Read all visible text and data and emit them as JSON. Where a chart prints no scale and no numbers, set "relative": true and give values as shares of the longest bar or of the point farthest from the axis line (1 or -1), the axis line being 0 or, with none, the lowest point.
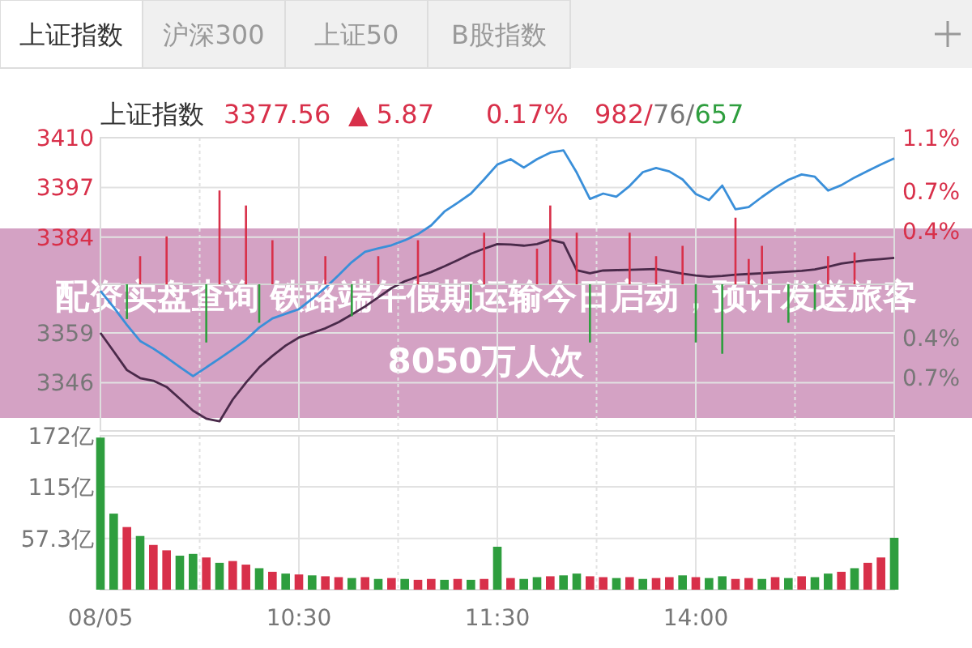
{
  "chart_data": [
    {
      "type": "line",
      "title": "上证指数",
      "annotations": [
        "上证指数",
        "沪深300",
        "上证50",
        "B股指数",
        "3377.56",
        "▲ 5.87",
        "0.17%",
        "982/76/657",
        "配资实盘查询 铁路端午假期运输今日启动，预计发送旅客8050万人次"
      ],
      "categories": [
        null,
        null,
        null,
        null,
        null,
        null,
        null,
        null,
        null,
        null,
        null,
        null,
        null,
        null,
        null,
        null,
        null,
        null,
        null,
        null,
        null,
        null,
        null,
        null,
        null,
        null,
        null,
        null,
        null,
        null,
        null,
        null,
        null,
        null,
        null,
        null,
        null,
        null,
        null,
        null,
        null,
        null,
        null,
        null,
        null,
        null,
        null,
        null,
        null,
        null,
        null,
        null,
        null,
        null,
        null,
        null,
        null,
        null,
        null,
        null,
        null
      ],
      "ylim": [
        3333.4,
        3410
      ],
      "yticks": [
        3410,
        3397,
        3384,
        3359,
        3346
      ],
      "y2lim": [
        -1.1,
        1.1
      ],
      "y2ticks": [
        {
          "value": 1.1,
          "label": "1.1%"
        },
        {
          "value": 0.7,
          "label": "0.7%"
        },
        {
          "value": 0.4,
          "label": "0.4%"
        },
        {
          "value": -0.4,
          "label": "0.4%"
        },
        {
          "value": -0.7,
          "label": "0.7%"
        }
      ],
      "tick_labels": "y",
      "grid": true,
      "series": [
        {
          "color": "#3a8fd9",
          "values": [
            3370,
            3365.7,
            3361.1,
            3356.9,
            3354.9,
            3352.6,
            3350.1,
            3347.7,
            3350,
            3352.3,
            3354.7,
            3357.2,
            3360.4,
            3362.8,
            3364,
            3365.2,
            3367.9,
            3370.8,
            3374.1,
            3377.5,
            3380.2,
            3381.1,
            3381.9,
            3383.2,
            3384.8,
            3387.1,
            3390.7,
            3393,
            3395.4,
            3399.1,
            3403,
            3404.4,
            3402.2,
            3404.4,
            3406.1,
            3406.7,
            3400.9,
            3394,
            3395.4,
            3394.6,
            3397.4,
            3401,
            3402.1,
            3401.2,
            3399.1,
            3395.3,
            3393.7,
            3397.5,
            3391.3,
            3391.9,
            3394.5,
            3396.9,
            3399,
            3400.4,
            3399.8,
            3396.2,
            3397.6,
            3399.6,
            3401.3,
            3403,
            3404.6
          ]
        },
        {
          "color": "#4a2a4a",
          "values": [
            3359,
            3354.2,
            3349.3,
            3347.2,
            3346.5,
            3344.9,
            3341.8,
            3338.7,
            3336.6,
            3335.9,
            3341.6,
            3346,
            3350,
            3353,
            3355.7,
            3357.8,
            3359,
            3360.2,
            3361.8,
            3363.8,
            3365.9,
            3368.3,
            3370.7,
            3372.5,
            3373.7,
            3374.9,
            3376.4,
            3378,
            3379.7,
            3381,
            3382.2,
            3382.1,
            3381.8,
            3382.2,
            3383.3,
            3382.5,
            3375.4,
            3374.6,
            3375.3,
            3375.4,
            3375.5,
            3375.6,
            3375.7,
            3375.1,
            3374.5,
            3374,
            3373.7,
            3373.9,
            3374.2,
            3374.4,
            3374.6,
            3374.8,
            3375,
            3375.2,
            3375.6,
            3376.3,
            3377.1,
            3377.6,
            3378,
            3378.3,
            3378.6
          ]
        }
      ]
    },
    {
      "type": "bar",
      "categories": [
        "08/05",
        null,
        null,
        null,
        null,
        null,
        null,
        null,
        null,
        null,
        null,
        null,
        null,
        null,
        null,
        "10:30",
        null,
        null,
        null,
        null,
        null,
        null,
        null,
        null,
        null,
        null,
        null,
        null,
        null,
        null,
        "11:30",
        null,
        null,
        null,
        null,
        null,
        null,
        null,
        null,
        null,
        null,
        null,
        null,
        null,
        null,
        "14:00",
        null,
        null,
        null,
        null,
        null,
        null,
        null,
        null,
        null,
        null,
        null,
        null,
        null,
        null,
        null
      ],
      "ylim": [
        0,
        172
      ],
      "yticks": [
        {
          "value": 172,
          "label": "172亿"
        },
        {
          "value": 115,
          "label": "115亿"
        },
        {
          "value": 57.3,
          "label": "57.3亿"
        }
      ],
      "grid": true,
      "values": [
        170,
        85,
        70,
        60,
        50,
        44,
        38,
        40,
        36,
        30,
        32,
        28,
        24,
        20,
        18,
        17,
        16,
        15,
        14,
        13,
        14,
        12,
        13,
        12,
        11,
        12,
        11,
        12,
        11,
        12,
        48,
        13,
        12,
        14,
        15,
        16,
        18,
        15,
        14,
        13,
        14,
        12,
        13,
        14,
        16,
        14,
        13,
        15,
        12,
        13,
        12,
        14,
        13,
        15,
        14,
        18,
        20,
        24,
        30,
        36,
        58
      ],
      "colors": [
        "#2e9e3e",
        "#2e9e3e",
        "#d8304a",
        "#2e9e3e",
        "#d8304a",
        "#d8304a",
        "#2e9e3e",
        "#2e9e3e",
        "#d8304a",
        "#2e9e3e",
        "#d8304a",
        "#d8304a",
        "#2e9e3e",
        "#d8304a",
        "#2e9e3e",
        "#d8304a",
        "#2e9e3e",
        "#d8304a",
        "#d8304a",
        "#2e9e3e",
        "#d8304a",
        "#2e9e3e",
        "#d8304a",
        "#2e9e3e",
        "#d8304a",
        "#d8304a",
        "#2e9e3e",
        "#d8304a",
        "#2e9e3e",
        "#d8304a",
        "#2e9e3e",
        "#d8304a",
        "#2e9e3e",
        "#2e9e3e",
        "#d8304a",
        "#2e9e3e",
        "#2e9e3e",
        "#d8304a",
        "#d8304a",
        "#2e9e3e",
        "#d8304a",
        "#2e9e3e",
        "#d8304a",
        "#d8304a",
        "#2e9e3e",
        "#d8304a",
        "#2e9e3e",
        "#2e9e3e",
        "#d8304a",
        "#d8304a",
        "#2e9e3e",
        "#d8304a",
        "#2e9e3e",
        "#d8304a",
        "#2e9e3e",
        "#2e9e3e",
        "#d8304a",
        "#2e9e3e",
        "#d8304a",
        "#d8304a",
        "#2e9e3e"
      ]
    },
    {
      "type": "bar",
      "relative": true,
      "categories": [
        null,
        null,
        null,
        null,
        null,
        null,
        null,
        null,
        null,
        null,
        null,
        null,
        null,
        null,
        null,
        null,
        null,
        null,
        null,
        null,
        null,
        null,
        null,
        null,
        null,
        null,
        null,
        null,
        null,
        null,
        null,
        null,
        null,
        null,
        null,
        null,
        null,
        null,
        null,
        null,
        null,
        null,
        null,
        null,
        null,
        null,
        null,
        null,
        null,
        null,
        null,
        null,
        null,
        null,
        null,
        null,
        null,
        null,
        null,
        null,
        null
      ],
      "values": [
        null,
        null,
        -0.37,
        0.3,
        null,
        0.51,
        null,
        null,
        -0.62,
        1,
        null,
        0.84,
        -0.41,
        0.47,
        null,
        null,
        null,
        0.3,
        null,
        -0.34,
        null,
        0.3,
        null,
        null,
        0.47,
        null,
        null,
        null,
        -0.27,
        0.55,
        null,
        null,
        null,
        0.38,
        0.84,
        null,
        0.55,
        -0.62,
        null,
        null,
        0.55,
        null,
        0.3,
        null,
        0.41,
        -0.62,
        null,
        -0.74,
        0.71,
        0.27,
        0.41,
        null,
        -0.41,
        null,
        -0.27,
        0.3,
        null,
        0.34,
        null,
        null,
        null
      ],
      "colors": [
        null,
        null,
        "#2e9e3e",
        "#d8304a",
        null,
        "#d8304a",
        null,
        null,
        "#2e9e3e",
        "#d8304a",
        null,
        "#d8304a",
        "#2e9e3e",
        "#d8304a",
        null,
        null,
        null,
        "#d8304a",
        null,
        "#2e9e3e",
        null,
        "#d8304a",
        null,
        null,
        "#d8304a",
        null,
        null,
        null,
        "#2e9e3e",
        "#d8304a",
        null,
        null,
        null,
        "#d8304a",
        "#d8304a",
        null,
        "#d8304a",
        "#2e9e3e",
        null,
        null,
        "#d8304a",
        null,
        "#d8304a",
        null,
        "#d8304a",
        "#2e9e3e",
        null,
        "#2e9e3e",
        "#d8304a",
        "#d8304a",
        "#d8304a",
        null,
        "#2e9e3e",
        null,
        "#2e9e3e",
        "#d8304a",
        null,
        "#d8304a",
        null,
        null,
        null
      ]
    }
  ]
}
